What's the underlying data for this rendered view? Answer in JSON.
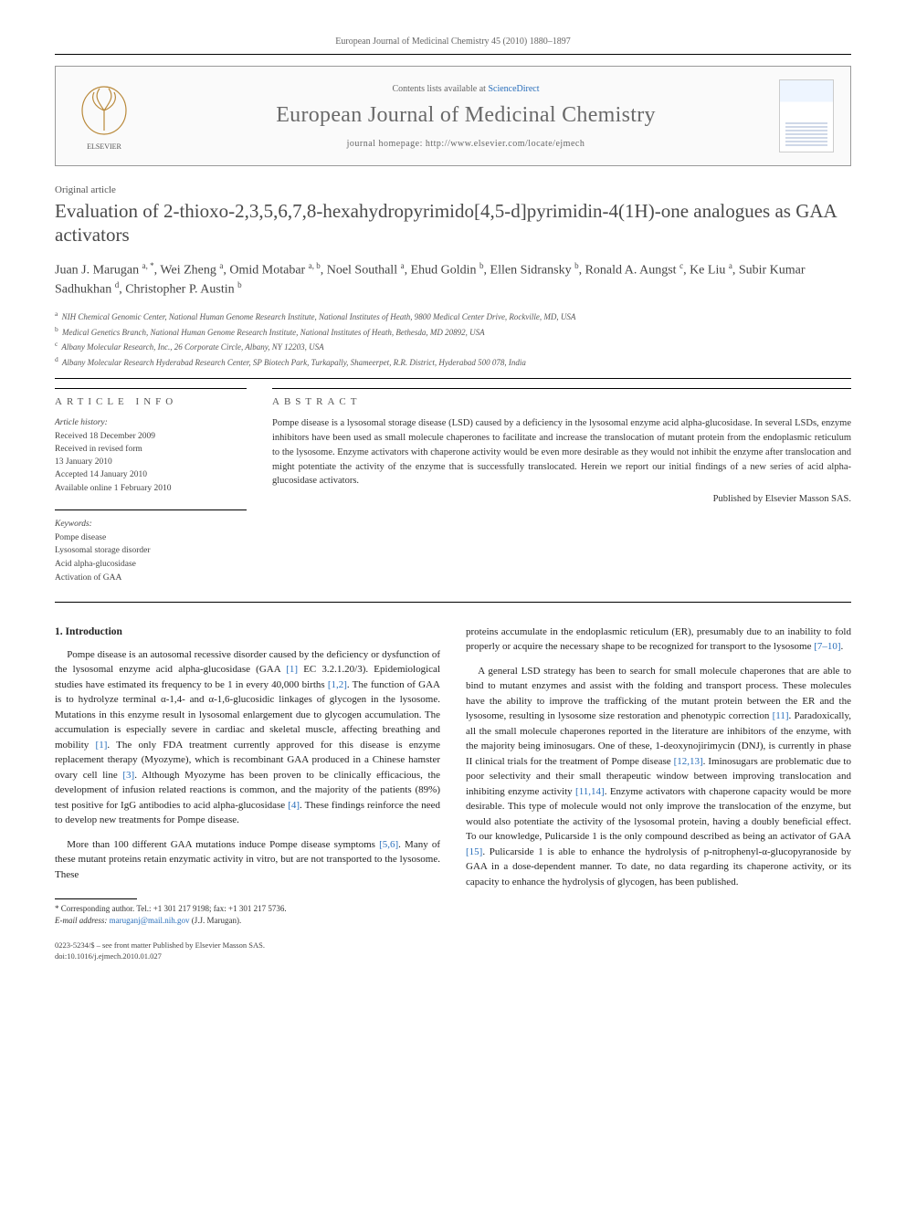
{
  "header": {
    "journal_line": "European Journal of Medicinal Chemistry 45 (2010) 1880–1897",
    "contents_prefix": "Contents lists available at ",
    "contents_link": "ScienceDirect",
    "journal_name": "European Journal of Medicinal Chemistry",
    "homepage_prefix": "journal homepage: ",
    "homepage_url": "http://www.elsevier.com/locate/ejmech",
    "logo_alt": "Elsevier tree logo",
    "publisher_label": "ELSEVIER"
  },
  "article": {
    "type": "Original article",
    "title": "Evaluation of 2-thioxo-2,3,5,6,7,8-hexahydropyrimido[4,5-d]pyrimidin-4(1H)-one analogues as GAA activators"
  },
  "authors_html": "Juan J. Marugan <sup>a, *</sup>, Wei Zheng <sup>a</sup>, Omid Motabar <sup>a, b</sup>, Noel Southall <sup>a</sup>, Ehud Goldin <sup>b</sup>, Ellen Sidransky <sup>b</sup>, Ronald A. Aungst <sup>c</sup>, Ke Liu <sup>a</sup>, Subir Kumar Sadhukhan <sup>d</sup>, Christopher P. Austin <sup>b</sup>",
  "affiliations": [
    {
      "sup": "a",
      "text": "NIH Chemical Genomic Center, National Human Genome Research Institute, National Institutes of Heath, 9800 Medical Center Drive, Rockville, MD, USA"
    },
    {
      "sup": "b",
      "text": "Medical Genetics Branch, National Human Genome Research Institute, National Institutes of Heath, Bethesda, MD 20892, USA"
    },
    {
      "sup": "c",
      "text": "Albany Molecular Research, Inc., 26 Corporate Circle, Albany, NY 12203, USA"
    },
    {
      "sup": "d",
      "text": "Albany Molecular Research Hyderabad Research Center, SP Biotech Park, Turkapally, Shameerpet, R.R. District, Hyderabad 500 078, India"
    }
  ],
  "info": {
    "left_heading": "ARTICLE INFO",
    "right_heading": "ABSTRACT",
    "history_label": "Article history:",
    "history_lines": [
      "Received 18 December 2009",
      "Received in revised form",
      "13 January 2010",
      "Accepted 14 January 2010",
      "Available online 1 February 2010"
    ],
    "keywords_label": "Keywords:",
    "keywords": [
      "Pompe disease",
      "Lysosomal storage disorder",
      "Acid alpha-glucosidase",
      "Activation of GAA"
    ],
    "abstract": "Pompe disease is a lysosomal storage disease (LSD) caused by a deficiency in the lysosomal enzyme acid alpha-glucosidase. In several LSDs, enzyme inhibitors have been used as small molecule chaperones to facilitate and increase the translocation of mutant protein from the endoplasmic reticulum to the lysosome. Enzyme activators with chaperone activity would be even more desirable as they would not inhibit the enzyme after translocation and might potentiate the activity of the enzyme that is successfully translocated. Herein we report our initial findings of a new series of acid alpha-glucosidase activators.",
    "abstract_pub": "Published by Elsevier Masson SAS."
  },
  "sections": {
    "intro_heading": "1. Introduction"
  },
  "body": {
    "col1_p1": "Pompe disease is an autosomal recessive disorder caused by the deficiency or dysfunction of the lysosomal enzyme acid alpha-glucosidase (GAA [1] EC 3.2.1.20/3). Epidemiological studies have estimated its frequency to be 1 in every 40,000 births [1,2]. The function of GAA is to hydrolyze terminal α-1,4- and α-1,6-glucosidic linkages of glycogen in the lysosome. Mutations in this enzyme result in lysosomal enlargement due to glycogen accumulation. The accumulation is especially severe in cardiac and skeletal muscle, affecting breathing and mobility [1]. The only FDA treatment currently approved for this disease is enzyme replacement therapy (Myozyme), which is recombinant GAA produced in a Chinese hamster ovary cell line [3]. Although Myozyme has been proven to be clinically efficacious, the development of infusion related reactions is common, and the majority of the patients (89%) test positive for IgG antibodies to acid alpha-glucosidase [4]. These findings reinforce the need to develop new treatments for Pompe disease.",
    "col1_p2": "More than 100 different GAA mutations induce Pompe disease symptoms [5,6]. Many of these mutant proteins retain enzymatic activity in vitro, but are not transported to the lysosome. These",
    "col2_p1": "proteins accumulate in the endoplasmic reticulum (ER), presumably due to an inability to fold properly or acquire the necessary shape to be recognized for transport to the lysosome [7–10].",
    "col2_p2": "A general LSD strategy has been to search for small molecule chaperones that are able to bind to mutant enzymes and assist with the folding and transport process. These molecules have the ability to improve the trafficking of the mutant protein between the ER and the lysosome, resulting in lysosome size restoration and phenotypic correction [11]. Paradoxically, all the small molecule chaperones reported in the literature are inhibitors of the enzyme, with the majority being iminosugars. One of these, 1-deoxynojirimycin (DNJ), is currently in phase II clinical trials for the treatment of Pompe disease [12,13]. Iminosugars are problematic due to poor selectivity and their small therapeutic window between improving translocation and inhibiting enzyme activity [11,14]. Enzyme activators with chaperone capacity would be more desirable. This type of molecule would not only improve the translocation of the enzyme, but would also potentiate the activity of the lysosomal protein, having a doubly beneficial effect. To our knowledge, Pulicarside 1 is the only compound described as being an activator of GAA [15]. Pulicarside 1 is able to enhance the hydrolysis of p-nitrophenyl-α-glucopyranoside by GAA in a dose-dependent manner. To date, no data regarding its chaperone activity, or its capacity to enhance the hydrolysis of glycogen, has been published."
  },
  "footnote": {
    "corr": "* Corresponding author. Tel.: +1 301 217 9198; fax: +1 301 217 5736.",
    "email_label": "E-mail address: ",
    "email": "maruganj@mail.nih.gov",
    "email_tail": " (J.J. Marugan)."
  },
  "copyright": {
    "line1": "0223-5234/$ – see front matter Published by Elsevier Masson SAS.",
    "line2": "doi:10.1016/j.ejmech.2010.01.027"
  },
  "colors": {
    "link": "#2a6fbb",
    "text": "#333333",
    "muted": "#666666"
  }
}
